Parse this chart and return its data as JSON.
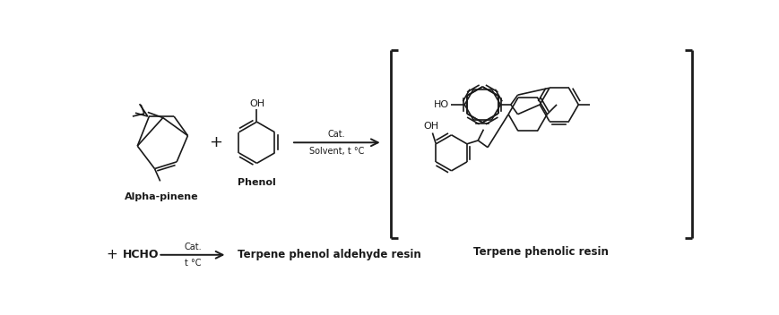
{
  "background_color": "#ffffff",
  "line_color": "#1a1a1a",
  "text_color": "#1a1a1a",
  "fig_width": 8.7,
  "fig_height": 3.52,
  "dpi": 100,
  "labels": {
    "alpha_pinene": "Alpha-pinene",
    "phenol": "Phenol",
    "terpene_phenolic": "Terpene phenolic resin",
    "terpene_aldehyde": "Terpene phenol aldehyde resin",
    "cat_above": "Cat.",
    "cat_below": "Solvent, t °C",
    "cat2_above": "Cat.",
    "cat2_below": "t °C",
    "hcho": "HCHO",
    "plus": "+"
  },
  "font_sizes": {
    "molecule_label": 8.0,
    "molecule_label_bold": 8.0,
    "annotation": 7.0,
    "resin_label": 8.5,
    "hcho_label": 9,
    "aldehyde_label": 8.5
  }
}
